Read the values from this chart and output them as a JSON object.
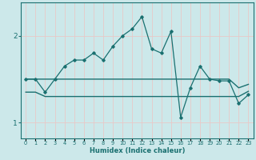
{
  "xlabel": "Humidex (Indice chaleur)",
  "background_color": "#cce8ea",
  "grid_color": "#e8c8c8",
  "line_color": "#1a7070",
  "x_values": [
    0,
    1,
    2,
    3,
    4,
    5,
    6,
    7,
    8,
    9,
    10,
    11,
    12,
    13,
    14,
    15,
    16,
    17,
    18,
    19,
    20,
    21,
    22,
    23
  ],
  "y_main": [
    1.5,
    1.5,
    1.35,
    1.5,
    1.65,
    1.72,
    1.72,
    1.8,
    1.72,
    1.88,
    2.0,
    2.08,
    2.22,
    1.85,
    1.8,
    2.05,
    1.06,
    1.4,
    1.65,
    1.5,
    1.48,
    1.48,
    1.22,
    1.32
  ],
  "y_flat_upper": [
    1.5,
    1.5,
    1.5,
    1.5,
    1.5,
    1.5,
    1.5,
    1.5,
    1.5,
    1.5,
    1.5,
    1.5,
    1.5,
    1.5,
    1.5,
    1.5,
    1.5,
    1.5,
    1.5,
    1.5,
    1.5,
    1.5,
    1.4,
    1.44
  ],
  "y_flat_lower": [
    1.35,
    1.35,
    1.3,
    1.3,
    1.3,
    1.3,
    1.3,
    1.3,
    1.3,
    1.3,
    1.3,
    1.3,
    1.3,
    1.3,
    1.3,
    1.3,
    1.3,
    1.3,
    1.3,
    1.3,
    1.3,
    1.3,
    1.3,
    1.36
  ],
  "ylim": [
    0.82,
    2.38
  ],
  "yticks": [
    1,
    2
  ],
  "xlim": [
    -0.5,
    23.5
  ],
  "figsize": [
    3.2,
    2.0
  ],
  "dpi": 100
}
